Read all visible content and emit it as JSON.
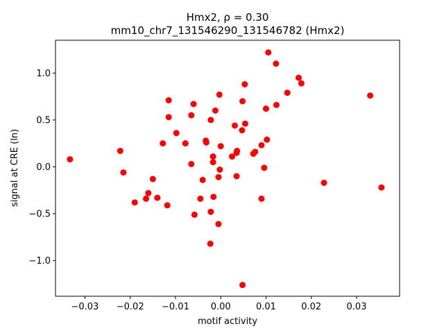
{
  "chart_data": {
    "type": "scatter",
    "title_line1": "Hmx2, ρ = 0.30",
    "title_line2": "mm10_chr7_131546290_131546782 (Hmx2)",
    "xlabel": "motif activity",
    "ylabel": "signal at CRE (ln)",
    "xlim": [
      -0.0365,
      0.0395
    ],
    "ylim": [
      -1.38,
      1.35
    ],
    "xticks": [
      -0.03,
      -0.02,
      -0.01,
      0.0,
      0.01,
      0.02,
      0.03
    ],
    "xtick_labels": [
      "−0.03",
      "−0.02",
      "−0.01",
      "0.00",
      "0.01",
      "0.02",
      "0.03"
    ],
    "yticks": [
      -1.0,
      -0.5,
      0.0,
      0.5,
      1.0
    ],
    "ytick_labels": [
      "−1.0",
      "−0.5",
      "0.0",
      "0.5",
      "1.0"
    ],
    "grid": false,
    "marker_color": "#ff0000",
    "points": [
      {
        "x": -0.0333,
        "y": 0.08
      },
      {
        "x": -0.0222,
        "y": 0.17
      },
      {
        "x": -0.0215,
        "y": -0.06
      },
      {
        "x": -0.019,
        "y": -0.38
      },
      {
        "x": -0.0165,
        "y": -0.34
      },
      {
        "x": -0.016,
        "y": -0.28
      },
      {
        "x": -0.015,
        "y": -0.13
      },
      {
        "x": -0.014,
        "y": -0.33
      },
      {
        "x": -0.0128,
        "y": 0.25
      },
      {
        "x": -0.0118,
        "y": -0.41
      },
      {
        "x": -0.0115,
        "y": 0.71
      },
      {
        "x": -0.0115,
        "y": 0.53
      },
      {
        "x": -0.0098,
        "y": 0.36
      },
      {
        "x": -0.0078,
        "y": 0.25
      },
      {
        "x": -0.0065,
        "y": 0.55
      },
      {
        "x": -0.0065,
        "y": 0.03
      },
      {
        "x": -0.006,
        "y": 0.67
      },
      {
        "x": -0.0058,
        "y": -0.51
      },
      {
        "x": -0.0045,
        "y": -0.34
      },
      {
        "x": -0.004,
        "y": -0.14
      },
      {
        "x": -0.0033,
        "y": 0.28
      },
      {
        "x": -0.0032,
        "y": 0.26
      },
      {
        "x": -0.0022,
        "y": 0.5
      },
      {
        "x": -0.0022,
        "y": -0.48
      },
      {
        "x": -0.0023,
        "y": -0.82
      },
      {
        "x": -0.0017,
        "y": 0.11
      },
      {
        "x": -0.0017,
        "y": 0.05
      },
      {
        "x": -0.0016,
        "y": -0.32
      },
      {
        "x": -0.0012,
        "y": 0.6
      },
      {
        "x": -0.0005,
        "y": -0.11
      },
      {
        "x": -0.0005,
        "y": -0.61
      },
      {
        "x": -0.0003,
        "y": 0.77
      },
      {
        "x": -0.0002,
        "y": -0.03
      },
      {
        "x": 0.0,
        "y": 0.22
      },
      {
        "x": 0.0025,
        "y": 0.11
      },
      {
        "x": 0.0031,
        "y": 0.44
      },
      {
        "x": 0.0035,
        "y": 0.15
      },
      {
        "x": 0.0036,
        "y": 0.17
      },
      {
        "x": 0.0035,
        "y": -0.1
      },
      {
        "x": 0.0047,
        "y": 0.39
      },
      {
        "x": 0.0048,
        "y": 0.7
      },
      {
        "x": 0.0048,
        "y": -1.26
      },
      {
        "x": 0.0053,
        "y": 0.88
      },
      {
        "x": 0.0054,
        "y": 0.46
      },
      {
        "x": 0.0072,
        "y": 0.14
      },
      {
        "x": 0.0076,
        "y": 0.16
      },
      {
        "x": 0.009,
        "y": 0.23
      },
      {
        "x": 0.009,
        "y": -0.34
      },
      {
        "x": 0.0096,
        "y": -0.01
      },
      {
        "x": 0.01,
        "y": 0.62
      },
      {
        "x": 0.0102,
        "y": 0.29
      },
      {
        "x": 0.0105,
        "y": 1.22
      },
      {
        "x": 0.0122,
        "y": 1.1
      },
      {
        "x": 0.0123,
        "y": 0.66
      },
      {
        "x": 0.0147,
        "y": 0.79
      },
      {
        "x": 0.0172,
        "y": 0.95
      },
      {
        "x": 0.0178,
        "y": 0.89
      },
      {
        "x": 0.0228,
        "y": -0.17
      },
      {
        "x": 0.033,
        "y": 0.76
      },
      {
        "x": 0.0355,
        "y": -0.22
      }
    ]
  }
}
